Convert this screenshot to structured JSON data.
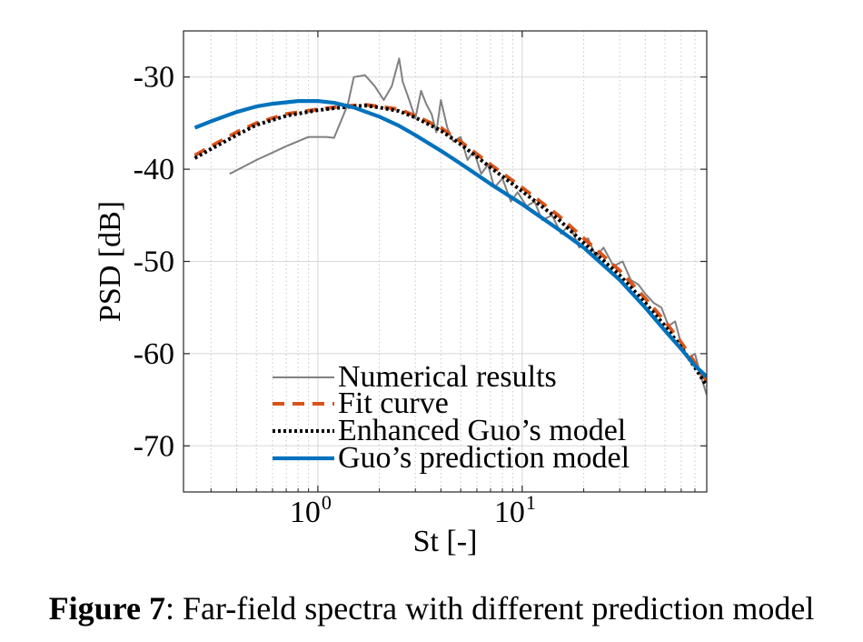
{
  "chart_data": {
    "type": "line",
    "xscale": "log",
    "xlabel": "St [-]",
    "ylabel": "PSD [dB]",
    "xlim": [
      0.22,
      80
    ],
    "ylim": [
      -75,
      -25
    ],
    "grid": true,
    "xticks": [
      {
        "value": 1,
        "base": "10",
        "exp": "0"
      },
      {
        "value": 10,
        "base": "10",
        "exp": "1"
      }
    ],
    "yticks": [
      -30,
      -40,
      -50,
      -60,
      -70
    ],
    "ytick_labels": [
      "-30",
      "-40",
      "-50",
      "-60",
      "-70"
    ],
    "legend_position": "bottom-right",
    "series": [
      {
        "name": "Numerical results",
        "color": "#808080",
        "style": "solid",
        "x": [
          0.37,
          0.5,
          0.7,
          0.9,
          1.1,
          1.2,
          1.4,
          1.5,
          1.7,
          1.9,
          2.1,
          2.3,
          2.5,
          2.6,
          2.8,
          3.0,
          3.2,
          3.4,
          3.6,
          3.8,
          4.0,
          4.3,
          4.6,
          5.0,
          5.4,
          5.8,
          6.3,
          6.8,
          7.3,
          8.0,
          8.8,
          9.5,
          10.5,
          11.5,
          12.5,
          14,
          15.5,
          17,
          19,
          21,
          23,
          25,
          28,
          31,
          34,
          37,
          40,
          44,
          48,
          52,
          56,
          60,
          65,
          70,
          75,
          80
        ],
        "y": [
          -40.5,
          -39.0,
          -37.5,
          -36.5,
          -36.5,
          -36.6,
          -33.0,
          -30.0,
          -29.8,
          -31.0,
          -32.5,
          -31.0,
          -28.0,
          -30.5,
          -32.5,
          -34.5,
          -31.5,
          -33.0,
          -34.0,
          -36.0,
          -32.5,
          -35.5,
          -37.0,
          -36.5,
          -39.0,
          -38.0,
          -40.5,
          -39.5,
          -42.0,
          -41.0,
          -43.5,
          -42.5,
          -44.0,
          -43.5,
          -45.5,
          -45.0,
          -47.0,
          -46.0,
          -48.5,
          -47.5,
          -49.5,
          -48.5,
          -50.5,
          -50.0,
          -52.0,
          -52.5,
          -53.5,
          -54.5,
          -55.0,
          -57.0,
          -56.5,
          -59.0,
          -60.5,
          -60.0,
          -62.5,
          -64.5
        ]
      },
      {
        "name": "Fit curve",
        "color": "#D95319",
        "style": "dashed",
        "x": [
          0.25,
          0.3,
          0.4,
          0.5,
          0.7,
          1.0,
          1.3,
          1.7,
          2.0,
          2.5,
          3.0,
          4.0,
          5.0,
          7.0,
          10,
          15,
          20,
          30,
          40,
          50,
          60,
          70,
          80
        ],
        "y": [
          -38.5,
          -37.5,
          -36.0,
          -35.0,
          -34.0,
          -33.5,
          -33.2,
          -33.0,
          -33.2,
          -33.5,
          -34.2,
          -35.5,
          -37.0,
          -39.5,
          -42.0,
          -45.0,
          -47.5,
          -51.0,
          -54.0,
          -56.5,
          -58.8,
          -61.0,
          -63.0
        ]
      },
      {
        "name": "Enhanced Guo’s model",
        "color": "#000000",
        "style": "dotted",
        "x": [
          0.25,
          0.3,
          0.4,
          0.5,
          0.7,
          1.0,
          1.3,
          1.7,
          2.0,
          2.5,
          3.0,
          4.0,
          5.0,
          7.0,
          10,
          15,
          20,
          30,
          40,
          50,
          60,
          70,
          80
        ],
        "y": [
          -38.8,
          -37.8,
          -36.3,
          -35.2,
          -34.2,
          -33.6,
          -33.3,
          -33.1,
          -33.3,
          -33.7,
          -34.4,
          -35.8,
          -37.3,
          -39.8,
          -42.4,
          -45.4,
          -48.0,
          -51.5,
          -54.5,
          -57.0,
          -59.3,
          -61.5,
          -63.5
        ]
      },
      {
        "name": "Guo’s prediction model",
        "color": "#0072BD",
        "style": "solid",
        "x": [
          0.25,
          0.3,
          0.4,
          0.5,
          0.6,
          0.8,
          1.0,
          1.2,
          1.5,
          2.0,
          2.5,
          3.0,
          4.0,
          5.0,
          7.0,
          10,
          15,
          20,
          30,
          40,
          50,
          60,
          70,
          80
        ],
        "y": [
          -35.5,
          -34.8,
          -33.8,
          -33.2,
          -32.9,
          -32.6,
          -32.6,
          -32.8,
          -33.3,
          -34.3,
          -35.3,
          -36.3,
          -38.0,
          -39.4,
          -41.6,
          -43.8,
          -46.5,
          -48.5,
          -52.0,
          -55.0,
          -57.5,
          -59.5,
          -61.3,
          -62.5
        ]
      }
    ]
  },
  "caption": {
    "label": "Figure 7",
    "text": ": Far-field spectra with different prediction model"
  }
}
